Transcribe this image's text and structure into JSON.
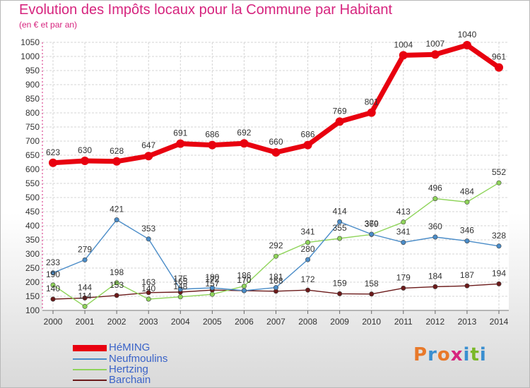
{
  "header": {
    "title": "Evolution des Impôts locaux pour la Commune par Habitant",
    "subtitle": "(en € et par an)"
  },
  "logo": {
    "text": "Proxiti",
    "colors": [
      "#e8792a",
      "#3a8fd0",
      "#e8792a",
      "#d6247e",
      "#3a8fd0",
      "#7ab828",
      "#3a8fd0"
    ]
  },
  "chart_data": {
    "type": "line",
    "x": [
      2000,
      2001,
      2002,
      2003,
      2004,
      2005,
      2006,
      2007,
      2008,
      2009,
      2010,
      2011,
      2012,
      2013,
      2014
    ],
    "ylim": [
      100,
      1050
    ],
    "yticks": [
      100,
      150,
      200,
      250,
      300,
      350,
      400,
      450,
      500,
      550,
      600,
      650,
      700,
      750,
      800,
      850,
      900,
      950,
      1000,
      1050
    ],
    "grid": true,
    "legend_position": "bottom-left",
    "series": [
      {
        "name": "HéMING",
        "color": "#e8000f",
        "values": [
          623,
          630,
          628,
          647,
          691,
          686,
          692,
          660,
          686,
          769,
          801,
          1004,
          1007,
          1040,
          961
        ]
      },
      {
        "name": "Neufmoulins",
        "color": "#4a8cc8",
        "values": [
          233,
          279,
          421,
          353,
          175,
          180,
          170,
          181,
          280,
          414,
          370,
          341,
          360,
          346,
          328
        ]
      },
      {
        "name": "Hertzing",
        "color": "#8fd45a",
        "values": [
          190,
          114,
          198,
          140,
          148,
          157,
          186,
          292,
          341,
          355,
          369,
          413,
          496,
          484,
          552
        ]
      },
      {
        "name": "Barchain",
        "color": "#6b1a1a",
        "values": [
          140,
          144,
          153,
          163,
          165,
          172,
          170,
          168,
          172,
          159,
          158,
          179,
          184,
          187,
          194
        ]
      }
    ]
  }
}
